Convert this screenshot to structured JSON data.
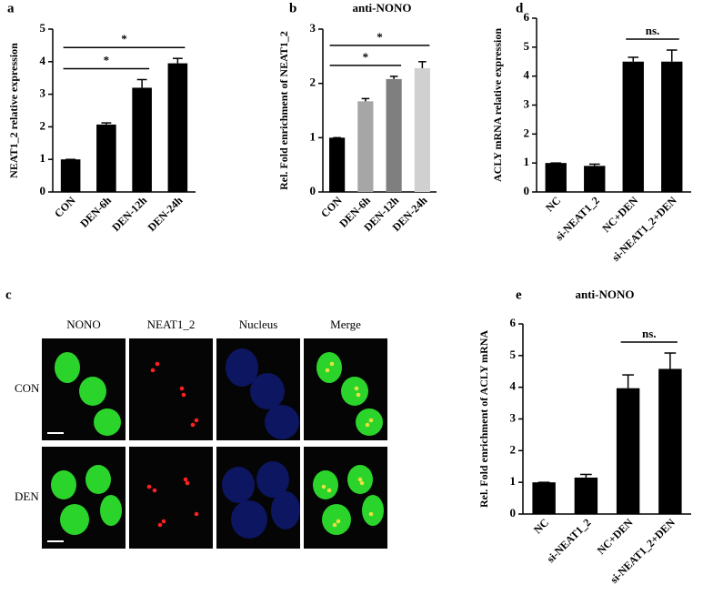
{
  "chart_data": [
    {
      "type": "bar",
      "panel": "a",
      "y_label": "NEAT1_2 relative expression",
      "categories": [
        "CON",
        "DEN-6h",
        "DEN-12h",
        "DEN-24h"
      ],
      "values": [
        1,
        2.07,
        3.2,
        3.95
      ],
      "errors": [
        0,
        0.05,
        0.25,
        0.15
      ],
      "color": "#000000",
      "ylim": [
        0,
        5
      ],
      "yticks": [
        0,
        1,
        2,
        3,
        4,
        5
      ],
      "annotations": [
        {
          "label": "*",
          "between": [
            "CON",
            "DEN-12h"
          ]
        },
        {
          "label": "*",
          "between": [
            "CON",
            "DEN-24h"
          ]
        }
      ]
    },
    {
      "type": "bar",
      "panel": "b",
      "title": "anti-NONO",
      "y_label": "Rel. Fold enrichment of NEAT1_2",
      "categories": [
        "CON",
        "DEN-6h",
        "DEN-12h",
        "DEN-24h"
      ],
      "values": [
        1,
        1.67,
        2.08,
        2.28
      ],
      "errors": [
        0,
        0.05,
        0.05,
        0.12
      ],
      "colors": [
        "#000000",
        "#a6a6a6",
        "#7f7f7f",
        "#d0d0d0"
      ],
      "ylim": [
        0,
        3
      ],
      "yticks": [
        0,
        1,
        2,
        3
      ],
      "annotations": [
        {
          "label": "*",
          "between": [
            "CON",
            "DEN-12h"
          ]
        },
        {
          "label": "*",
          "between": [
            "CON",
            "DEN-24h"
          ]
        }
      ]
    },
    {
      "type": "bar",
      "panel": "d",
      "y_label": "ACLY mRNA relative  expression",
      "categories": [
        "NC",
        "si-NEAT1_2",
        "NC+DEN",
        "si-NEAT1_2+DEN"
      ],
      "values": [
        1,
        0.9,
        4.5,
        4.5
      ],
      "errors": [
        0,
        0.06,
        0.15,
        0.4
      ],
      "color": "#000000",
      "ylim": [
        0,
        6
      ],
      "yticks": [
        0,
        1,
        2,
        3,
        4,
        5,
        6
      ],
      "annotations": [
        {
          "label": "ns.",
          "between": [
            "NC+DEN",
            "si-NEAT1_2+DEN"
          ]
        }
      ]
    },
    {
      "type": "bar",
      "panel": "e",
      "title": "anti-NONO",
      "y_label": "Rel. Fold enrichment of ACLY mRNA",
      "categories": [
        "NC",
        "si-NEAT1_2",
        "NC+DEN",
        "si-NEAT1_2+DEN"
      ],
      "values": [
        1,
        1.15,
        3.97,
        4.58
      ],
      "errors": [
        0,
        0.1,
        0.42,
        0.5
      ],
      "color": "#000000",
      "ylim": [
        0,
        6
      ],
      "yticks": [
        0,
        1,
        2,
        3,
        4,
        5,
        6
      ],
      "annotations": [
        {
          "label": "ns.",
          "between": [
            "NC+DEN",
            "si-NEAT1_2+DEN"
          ]
        }
      ]
    }
  ],
  "image_panel": {
    "panel": "c",
    "columns": [
      "NONO",
      "NEAT1_2",
      "Nucleus",
      "Merge"
    ],
    "rows": [
      "CON",
      "DEN"
    ]
  }
}
